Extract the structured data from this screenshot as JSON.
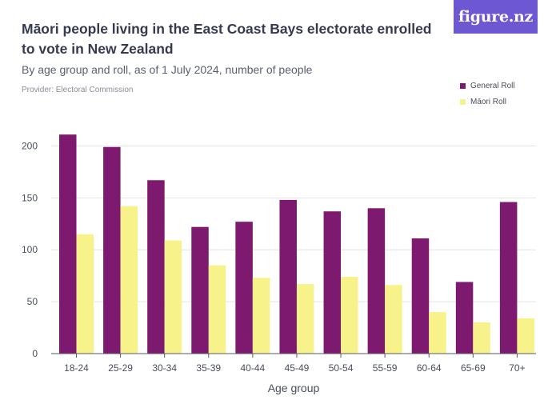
{
  "brand": {
    "logo_text": "figure.nz"
  },
  "chart_data": {
    "type": "bar",
    "title": "Māori people living in the East Coast Bays electorate enrolled to vote in New Zealand",
    "subtitle": "By age group and roll, as of 1 July 2024, number of people",
    "provider": "Provider: Electoral Commission",
    "xlabel": "Age group",
    "ylabel": "",
    "ylim": [
      0,
      225
    ],
    "yticks": [
      0,
      50,
      100,
      150,
      200
    ],
    "grid": true,
    "legend_position": "top-right",
    "categories": [
      "18-24",
      "25-29",
      "30-34",
      "35-39",
      "40-44",
      "45-49",
      "50-54",
      "55-59",
      "60-64",
      "65-69",
      "70+"
    ],
    "series": [
      {
        "name": "General Roll",
        "color": "#7d1a6f",
        "values": [
          211,
          199,
          167,
          122,
          127,
          148,
          137,
          140,
          111,
          69,
          146
        ]
      },
      {
        "name": "Māori Roll",
        "color": "#f8f28a",
        "values": [
          115,
          142,
          109,
          85,
          73,
          67,
          74,
          66,
          40,
          30,
          34
        ]
      }
    ]
  }
}
